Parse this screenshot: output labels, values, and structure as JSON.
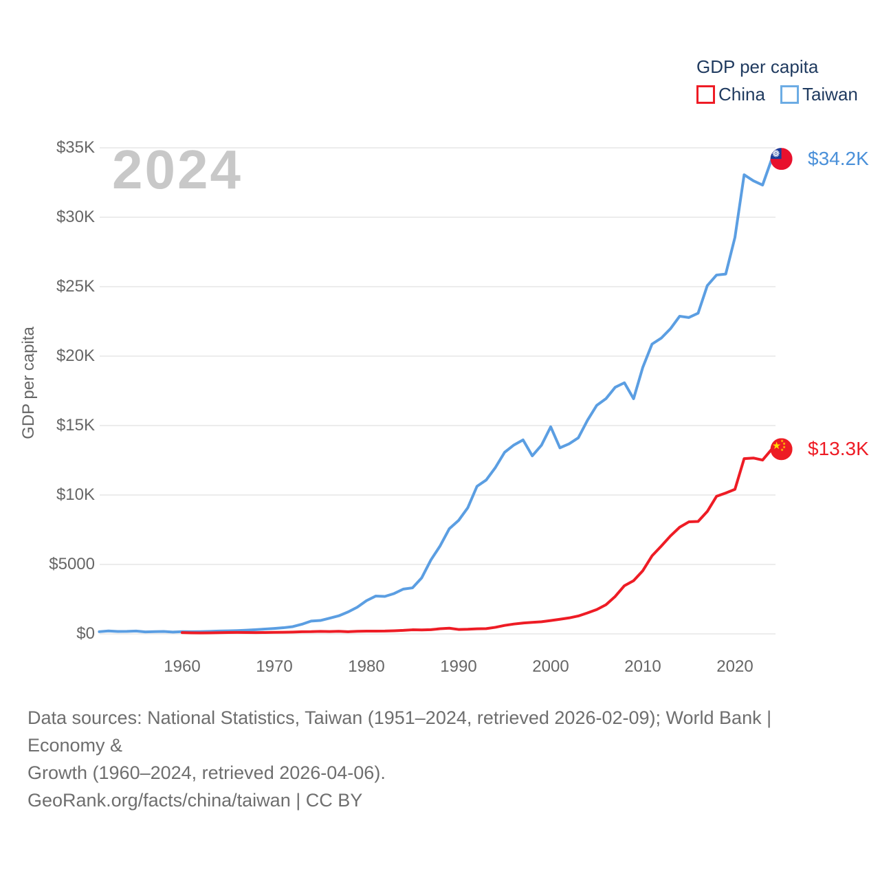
{
  "legend": {
    "title": "GDP per capita",
    "items": [
      {
        "id": "china",
        "label": "China",
        "color": "#ee1c25"
      },
      {
        "id": "taiwan",
        "label": "Taiwan",
        "color": "#6cace4"
      }
    ]
  },
  "watermark_year": "2024",
  "y_axis": {
    "title": "GDP per capita",
    "ticks": [
      "$35K",
      "$30K",
      "$25K",
      "$20K",
      "$15K",
      "$10K",
      "$5000",
      "$0"
    ]
  },
  "x_axis": {
    "ticks": [
      "1960",
      "1970",
      "1980",
      "1990",
      "2000",
      "2010",
      "2020"
    ]
  },
  "end_labels": {
    "taiwan": "$34.2K",
    "china": "$13.3K"
  },
  "footer": {
    "sources_line1": "Data sources: National Statistics, Taiwan (1951–2024, retrieved 2026-02-09); World Bank | Economy &",
    "sources_line2": "Growth (1960–2024, retrieved 2026-04-06).",
    "attribution": "GeoRank.org/facts/china/taiwan | CC BY"
  },
  "colors": {
    "taiwan_line": "#5b9ee2",
    "taiwan_label": "#4a90d9",
    "china_line": "#ee1c25",
    "china_label": "#ee1c25",
    "gridline": "#ececec",
    "axis_text": "#666666",
    "legend_text": "#1f3a5f",
    "watermark": "#c8c8c8"
  },
  "chart_data": {
    "type": "line",
    "title": "GDP per capita",
    "ylabel": "GDP per capita",
    "xlim": [
      1951,
      2024
    ],
    "ylim": [
      0,
      35000
    ],
    "grid": true,
    "legend_position": "top-right",
    "current_year": "2024",
    "series": [
      {
        "id": "taiwan",
        "name": "Taiwan",
        "color": "#5b9ee2",
        "label_color": "#4a90d9",
        "end_label": "$34.2K",
        "x": [
          1951,
          1952,
          1953,
          1954,
          1955,
          1956,
          1957,
          1958,
          1959,
          1960,
          1961,
          1962,
          1963,
          1964,
          1965,
          1966,
          1967,
          1968,
          1969,
          1970,
          1971,
          1972,
          1973,
          1974,
          1975,
          1976,
          1977,
          1978,
          1979,
          1980,
          1981,
          1982,
          1983,
          1984,
          1985,
          1986,
          1987,
          1988,
          1989,
          1990,
          1991,
          1992,
          1993,
          1994,
          1995,
          1996,
          1997,
          1998,
          1999,
          2000,
          2001,
          2002,
          2003,
          2004,
          2005,
          2006,
          2007,
          2008,
          2009,
          2010,
          2011,
          2012,
          2013,
          2014,
          2015,
          2016,
          2017,
          2018,
          2019,
          2020,
          2021,
          2022,
          2023,
          2024
        ],
        "values": [
          158,
          213,
          176,
          182,
          203,
          143,
          160,
          173,
          131,
          163,
          152,
          162,
          178,
          202,
          217,
          237,
          267,
          304,
          345,
          389,
          443,
          522,
          695,
          920,
          964,
          1132,
          1301,
          1577,
          1920,
          2389,
          2720,
          2699,
          2903,
          3224,
          3314,
          4036,
          5325,
          6338,
          7575,
          8167,
          9082,
          10625,
          11079,
          11980,
          13076,
          13597,
          13968,
          12820,
          13585,
          14908,
          13397,
          13686,
          14120,
          15388,
          16456,
          16934,
          17757,
          18081,
          16933,
          19197,
          20866,
          21295,
          21973,
          22874,
          22780,
          23091,
          25080,
          25838,
          25908,
          28549,
          33059,
          32625,
          32319,
          34200
        ]
      },
      {
        "id": "china",
        "name": "China",
        "color": "#ee1c25",
        "label_color": "#ee1c25",
        "end_label": "$13.3K",
        "x": [
          1960,
          1961,
          1962,
          1963,
          1964,
          1965,
          1966,
          1967,
          1968,
          1969,
          1970,
          1971,
          1972,
          1973,
          1974,
          1975,
          1976,
          1977,
          1978,
          1979,
          1980,
          1981,
          1982,
          1983,
          1984,
          1985,
          1986,
          1987,
          1988,
          1989,
          1990,
          1991,
          1992,
          1993,
          1994,
          1995,
          1996,
          1997,
          1998,
          1999,
          2000,
          2001,
          2002,
          2003,
          2004,
          2005,
          2006,
          2007,
          2008,
          2009,
          2010,
          2011,
          2012,
          2013,
          2014,
          2015,
          2016,
          2017,
          2018,
          2019,
          2020,
          2021,
          2022,
          2023,
          2024
        ],
        "values": [
          90,
          76,
          71,
          74,
          85,
          98,
          104,
          97,
          91,
          100,
          113,
          118,
          132,
          157,
          160,
          178,
          165,
          185,
          156,
          184,
          195,
          197,
          203,
          225,
          251,
          294,
          282,
          301,
          370,
          407,
          318,
          333,
          366,
          377,
          473,
          610,
          709,
          782,
          829,
          873,
          959,
          1053,
          1149,
          1289,
          1509,
          1753,
          2099,
          2694,
          3468,
          3832,
          4550,
          5618,
          6317,
          7051,
          7679,
          8067,
          8094,
          8817,
          9905,
          10144,
          10409,
          12618,
          12663,
          12514,
          13300
        ]
      }
    ]
  }
}
